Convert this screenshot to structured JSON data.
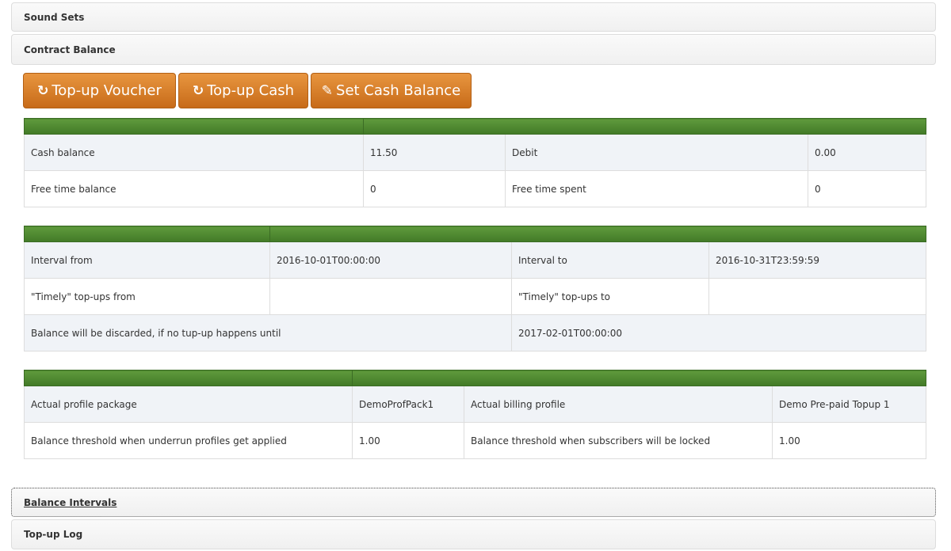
{
  "sections": {
    "sound_sets": "Sound Sets",
    "contract_balance": "Contract Balance",
    "balance_intervals": "Balance Intervals",
    "topup_log": "Top-up Log"
  },
  "buttons": {
    "topup_voucher": "Top-up Voucher",
    "topup_cash": "Top-up Cash",
    "set_cash_balance": "Set Cash Balance"
  },
  "colors": {
    "button": "#d9802c",
    "header": "#4f8a31"
  },
  "balance": {
    "cash_balance_label": "Cash balance",
    "cash_balance": "11.50",
    "debit_label": "Debit",
    "debit": "0.00",
    "free_time_balance_label": "Free time balance",
    "free_time_balance": "0",
    "free_time_spent_label": "Free time spent",
    "free_time_spent": "0"
  },
  "interval": {
    "from_label": "Interval from",
    "from": "2016-10-01T00:00:00",
    "to_label": "Interval to",
    "to": "2016-10-31T23:59:59",
    "timely_from_label": "\"Timely\" top-ups from",
    "timely_from": "",
    "timely_to_label": "\"Timely\" top-ups to",
    "timely_to": "",
    "discard_label": "Balance will be discarded, if no tup-up happens until",
    "discard": "2017-02-01T00:00:00"
  },
  "profile": {
    "package_label": "Actual profile package",
    "package": "DemoProfPack1",
    "billing_label": "Actual billing profile",
    "billing": "Demo Pre-paid Topup 1",
    "underrun_label": "Balance threshold when underrun profiles get applied",
    "underrun": "1.00",
    "lock_label": "Balance threshold when subscribers will be locked",
    "lock": "1.00"
  }
}
